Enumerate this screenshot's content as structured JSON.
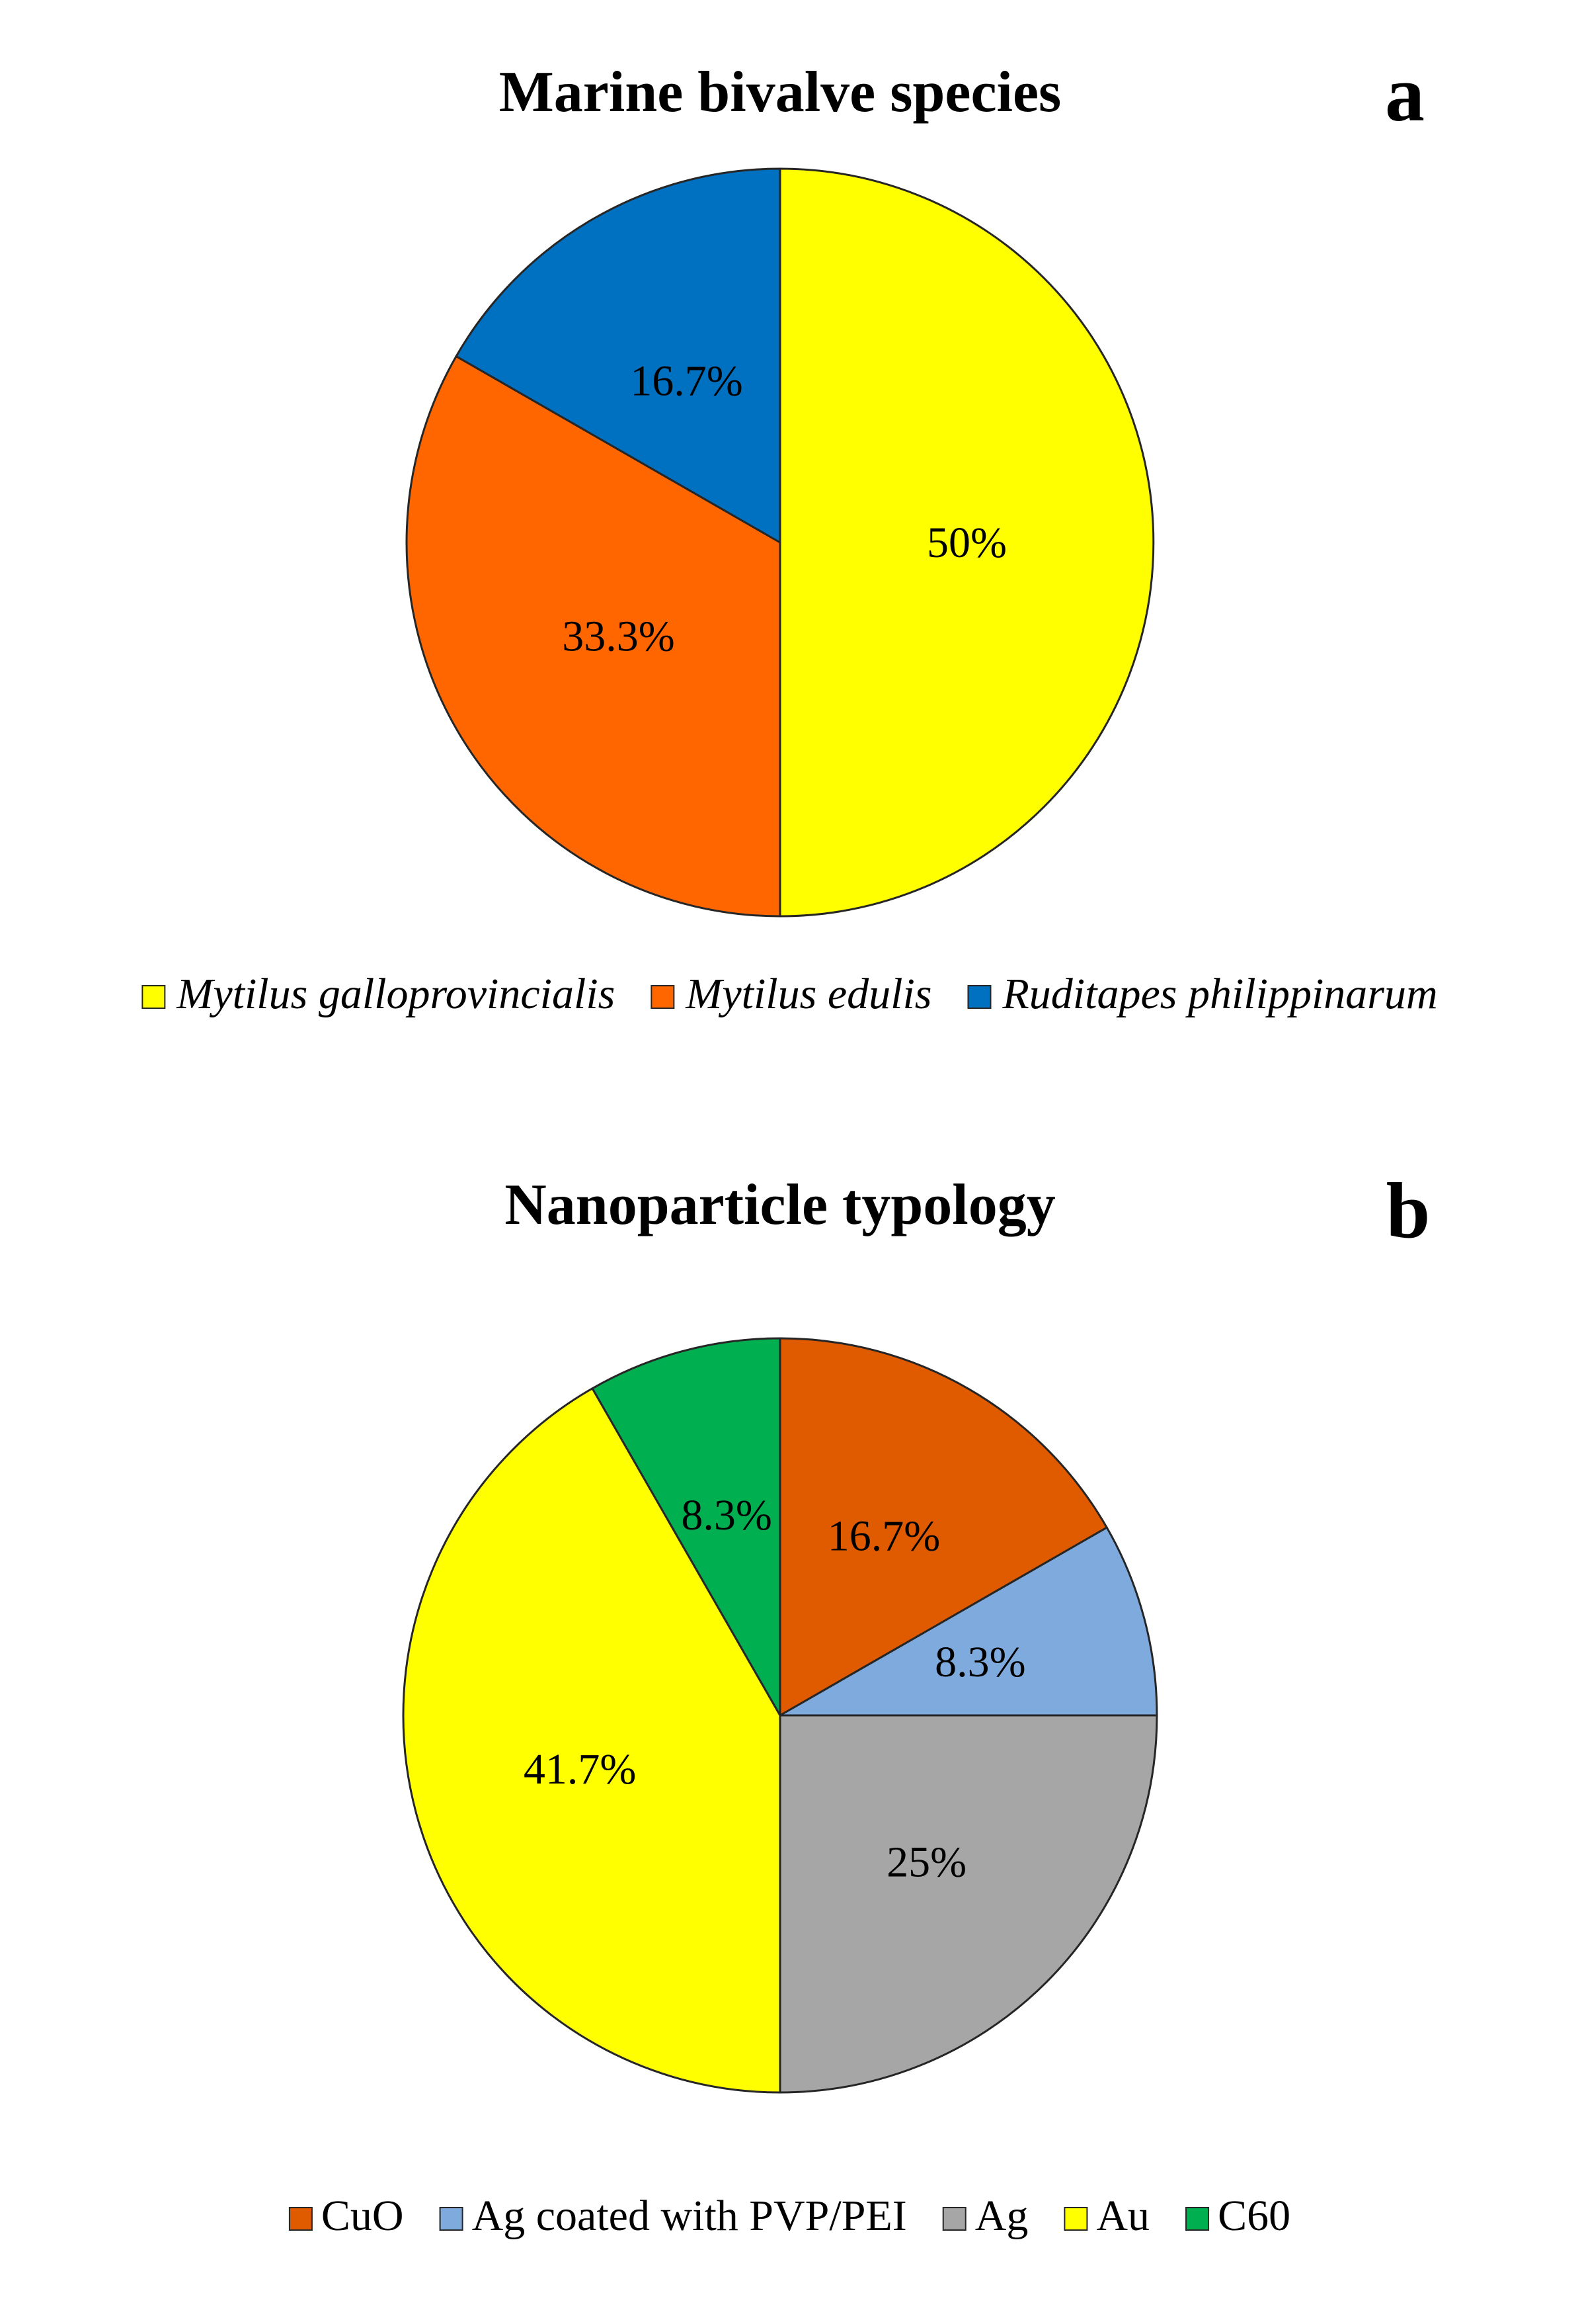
{
  "chart_data": [
    {
      "type": "pie",
      "panel_letter": "a",
      "title": "Marine bivalve species",
      "categories": [
        "Mytilus galloprovincialis",
        "Mytilus edulis",
        "Ruditapes philippinarum"
      ],
      "values": [
        50,
        33.3,
        16.7
      ],
      "labels": [
        "50%",
        "33.3%",
        "16.7%"
      ],
      "colors": [
        "#FFFF00",
        "#FF6600",
        "#0070C0"
      ],
      "legend_italic": true,
      "legend_position": "bottom"
    },
    {
      "type": "pie",
      "panel_letter": "b",
      "title": "Nanoparticle typology",
      "categories": [
        "CuO",
        "Ag coated with PVP/PEI",
        "Ag",
        "Au",
        "C60"
      ],
      "values": [
        16.7,
        8.3,
        25,
        41.7,
        8.3
      ],
      "labels": [
        "16.7%",
        "8.3%",
        "25%",
        "41.7%",
        "8.3%"
      ],
      "colors": [
        "#E05A00",
        "#7FAADD",
        "#A6A6A6",
        "#FFFF00",
        "#00B050"
      ],
      "legend_italic": false,
      "legend_position": "bottom"
    }
  ]
}
